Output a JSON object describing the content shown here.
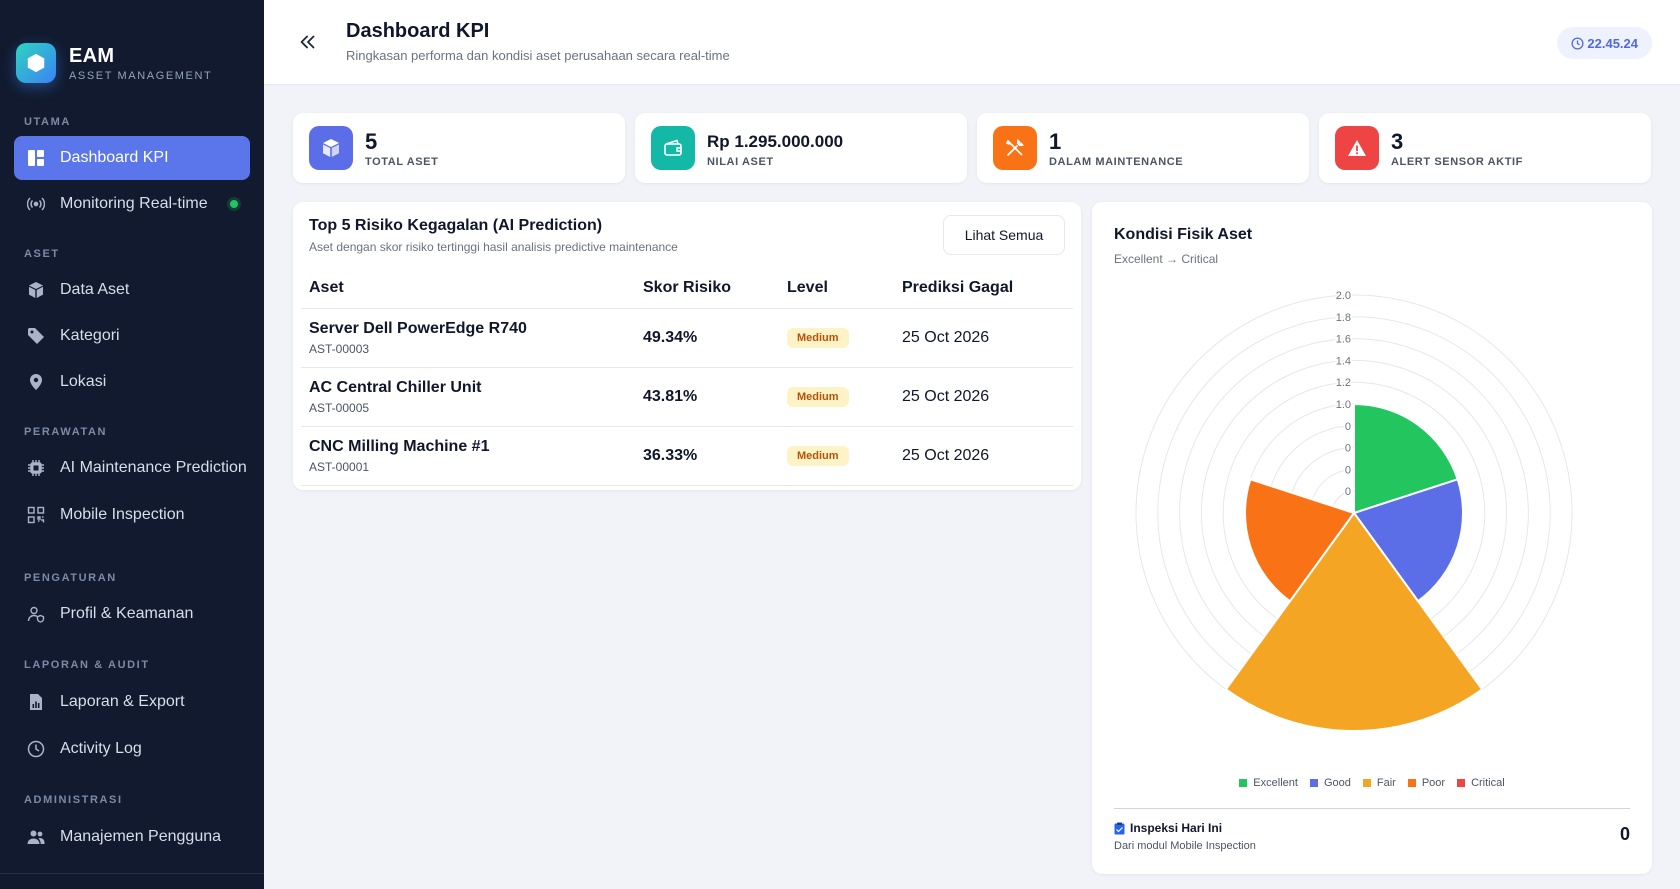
{
  "brand": {
    "title": "EAM",
    "subtitle": "ASSET MANAGEMENT"
  },
  "sidebar": {
    "sections": [
      {
        "label": "UTAMA",
        "items": [
          {
            "label": "Dashboard KPI",
            "icon": "dashboard-icon",
            "active": true
          },
          {
            "label": "Monitoring Real-time",
            "icon": "broadcast-icon",
            "live": true
          }
        ]
      },
      {
        "label": "ASET",
        "items": [
          {
            "label": "Data Aset",
            "icon": "box-icon"
          },
          {
            "label": "Kategori",
            "icon": "tag-icon"
          },
          {
            "label": "Lokasi",
            "icon": "map-pin-icon"
          }
        ]
      },
      {
        "label": "PERAWATAN",
        "items": [
          {
            "label": "AI Maintenance Prediction",
            "icon": "cpu-icon"
          },
          {
            "label": "Mobile Inspection",
            "icon": "qr-code-icon"
          }
        ]
      },
      {
        "label": "PENGATURAN",
        "items": [
          {
            "label": "Profil & Keamanan",
            "icon": "user-shield-icon"
          }
        ]
      },
      {
        "label": "LAPORAN & AUDIT",
        "items": [
          {
            "label": "Laporan & Export",
            "icon": "report-icon"
          },
          {
            "label": "Activity Log",
            "icon": "clock-icon"
          }
        ]
      },
      {
        "label": "ADMINISTRASI",
        "items": [
          {
            "label": "Manajemen Pengguna",
            "icon": "users-icon"
          }
        ]
      }
    ]
  },
  "header": {
    "title": "Dashboard KPI",
    "subtitle": "Ringkasan performa dan kondisi aset perusahaan secara real-time",
    "time": "22.45.24"
  },
  "kpis": [
    {
      "value": "5",
      "label": "TOTAL ASET",
      "icon": "box-icon",
      "color": "#5b6ee8"
    },
    {
      "value": "Rp 1.295.000.000",
      "label": "NILAI ASET",
      "icon": "wallet-icon",
      "color": "#14b8a6"
    },
    {
      "value": "1",
      "label": "DALAM MAINTENANCE",
      "icon": "tools-icon",
      "color": "#f97316"
    },
    {
      "value": "3",
      "label": "ALERT SENSOR AKTIF",
      "icon": "warning-icon",
      "color": "#ef4444"
    }
  ],
  "risk": {
    "title": "Top 5 Risiko Kegagalan (AI Prediction)",
    "subtitle": "Aset dengan skor risiko tertinggi hasil analisis predictive maintenance",
    "button_label": "Lihat Semua",
    "columns": [
      "Aset",
      "Skor Risiko",
      "Level",
      "Prediksi Gagal"
    ],
    "rows": [
      {
        "name": "Server Dell PowerEdge R740",
        "code": "AST-00003",
        "score": "49.34%",
        "level": "Medium",
        "date": "25 Oct 2026"
      },
      {
        "name": "AC Central Chiller Unit",
        "code": "AST-00005",
        "score": "43.81%",
        "level": "Medium",
        "date": "25 Oct 2026"
      },
      {
        "name": "CNC Milling Machine #1",
        "code": "AST-00001",
        "score": "36.33%",
        "level": "Medium",
        "date": "25 Oct 2026"
      }
    ]
  },
  "condition": {
    "title": "Kondisi Fisik Aset",
    "subtitle": "Excellent → Critical",
    "inspection_title": "Inspeksi Hari Ini",
    "inspection_sub": "Dari modul Mobile Inspection",
    "inspection_value": "0"
  },
  "chart_data": {
    "type": "polarArea",
    "categories": [
      "Excellent",
      "Good",
      "Fair",
      "Poor",
      "Critical"
    ],
    "values": [
      1,
      1,
      2,
      1,
      0
    ],
    "colors": [
      "#22c55e",
      "#5b6ee8",
      "#f5a524",
      "#f97316",
      "#ef4444"
    ],
    "radial_ticks": [
      "2.0",
      "1.8",
      "1.6",
      "1.4",
      "1.2",
      "1.0",
      "0",
      "0",
      "0",
      "0"
    ],
    "rlim": [
      0,
      2
    ],
    "legend": "bottom"
  }
}
